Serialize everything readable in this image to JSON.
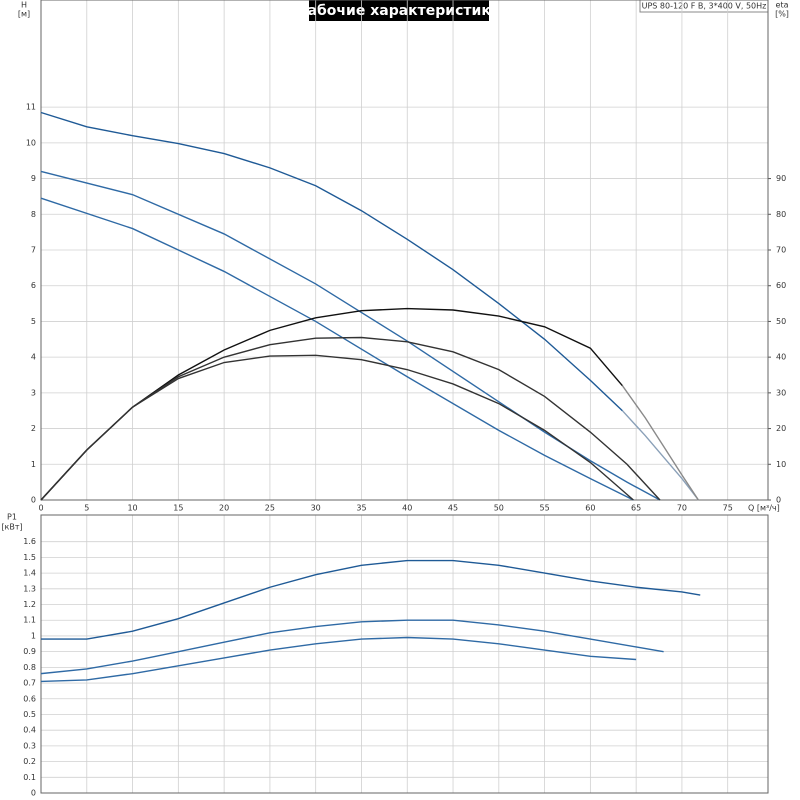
{
  "chart_data": [
    {
      "type": "line",
      "title": "Рабочие характеристики",
      "subtitle": "UPS 80-120 F B, 3*400 V, 50Hz",
      "ylabel": [
        "H",
        "[м]"
      ],
      "y2label": [
        "eta",
        "[%]"
      ],
      "xlabel": "Q [м³/ч]",
      "xlim": [
        0,
        79.4
      ],
      "xticks": [
        0,
        5,
        10,
        15,
        20,
        25,
        30,
        35,
        40,
        45,
        50,
        55,
        60,
        65,
        70,
        75
      ],
      "ylim": [
        0,
        14
      ],
      "yticks": [
        0,
        1,
        2,
        3,
        4,
        5,
        6,
        7,
        8,
        9,
        10,
        11
      ],
      "y2lim": [
        0,
        140
      ],
      "y2ticks": [
        0,
        10,
        20,
        30,
        40,
        50,
        60,
        70,
        80,
        90
      ],
      "grid": true,
      "series": [
        {
          "color": "#1f5a96",
          "x": [
            0,
            5,
            10,
            15,
            20,
            25,
            30,
            35,
            40,
            45,
            50,
            55,
            60,
            63.5
          ],
          "values": [
            10.85,
            10.45,
            10.2,
            9.98,
            9.7,
            9.3,
            8.8,
            8.1,
            7.3,
            6.45,
            5.5,
            4.5,
            3.35,
            2.5
          ]
        },
        {
          "color": "#8aa0b8",
          "x": [
            63.5,
            66,
            68,
            70,
            71.8
          ],
          "values": [
            2.5,
            1.8,
            1.2,
            0.6,
            0
          ]
        },
        {
          "color": "#2f6aa5",
          "x": [
            0,
            10,
            20,
            30,
            40,
            50,
            55,
            60,
            64,
            67.6
          ],
          "values": [
            9.2,
            8.55,
            7.45,
            6.05,
            4.45,
            2.75,
            1.9,
            1.1,
            0.5,
            0
          ]
        },
        {
          "color": "#2f6aa5",
          "x": [
            0,
            10,
            20,
            30,
            40,
            50,
            55,
            60,
            64.7
          ],
          "values": [
            8.45,
            7.6,
            6.4,
            5.0,
            3.45,
            1.95,
            1.25,
            0.6,
            0
          ]
        },
        {
          "color": "#111111",
          "axis": "y2",
          "x": [
            0,
            5,
            10,
            15,
            20,
            25,
            30,
            35,
            40,
            45,
            50,
            55,
            60,
            63.5
          ],
          "values": [
            0,
            14,
            26,
            35,
            42,
            47.5,
            51,
            53,
            53.6,
            53.2,
            51.5,
            48.5,
            42.5,
            32
          ]
        },
        {
          "color": "#8a8a8a",
          "axis": "y2",
          "x": [
            63.5,
            66,
            68,
            70,
            71.8
          ],
          "values": [
            32,
            23,
            15,
            7,
            0
          ]
        },
        {
          "color": "#333333",
          "axis": "y2",
          "x": [
            0,
            5,
            10,
            15,
            20,
            25,
            30,
            35,
            40,
            45,
            50,
            55,
            60,
            64,
            67.6
          ],
          "values": [
            0,
            14,
            26,
            34.5,
            40,
            43.5,
            45.3,
            45.5,
            44.3,
            41.5,
            36.5,
            29,
            19,
            10,
            0
          ]
        },
        {
          "color": "#333333",
          "axis": "y2",
          "x": [
            0,
            5,
            10,
            15,
            20,
            25,
            30,
            35,
            40,
            45,
            50,
            55,
            60,
            64.7
          ],
          "values": [
            0,
            14,
            26,
            34,
            38.5,
            40.3,
            40.5,
            39.3,
            36.5,
            32.5,
            27,
            19.5,
            10.5,
            0
          ]
        }
      ]
    },
    {
      "type": "line",
      "ylabel": [
        "P1",
        "[кВт]"
      ],
      "xlim": [
        0,
        79.4
      ],
      "xticks": [
        0,
        5,
        10,
        15,
        20,
        25,
        30,
        35,
        40,
        45,
        50,
        55,
        60,
        65,
        70,
        75
      ],
      "ylim": [
        0,
        1.77
      ],
      "yticks": [
        0,
        0.1,
        0.2,
        0.3,
        0.4,
        0.5,
        0.6,
        0.7,
        0.8,
        0.9,
        1,
        1.1,
        1.2,
        1.3,
        1.4,
        1.5,
        1.6
      ],
      "grid": true,
      "series": [
        {
          "color": "#1f5a96",
          "x": [
            0,
            5,
            10,
            15,
            20,
            25,
            30,
            35,
            40,
            45,
            50,
            55,
            60,
            65,
            70,
            72
          ],
          "values": [
            0.98,
            0.98,
            1.03,
            1.11,
            1.21,
            1.31,
            1.39,
            1.45,
            1.48,
            1.48,
            1.45,
            1.4,
            1.35,
            1.31,
            1.28,
            1.26
          ]
        },
        {
          "color": "#2f6aa5",
          "x": [
            0,
            5,
            10,
            15,
            20,
            25,
            30,
            35,
            40,
            45,
            50,
            55,
            60,
            65,
            68
          ],
          "values": [
            0.76,
            0.79,
            0.84,
            0.9,
            0.96,
            1.02,
            1.06,
            1.09,
            1.1,
            1.1,
            1.07,
            1.03,
            0.98,
            0.93,
            0.9
          ]
        },
        {
          "color": "#2f6aa5",
          "x": [
            0,
            5,
            10,
            15,
            20,
            25,
            30,
            35,
            40,
            45,
            50,
            55,
            60,
            65
          ],
          "values": [
            0.71,
            0.72,
            0.76,
            0.81,
            0.86,
            0.91,
            0.95,
            0.98,
            0.99,
            0.98,
            0.95,
            0.91,
            0.87,
            0.85
          ]
        }
      ]
    }
  ]
}
